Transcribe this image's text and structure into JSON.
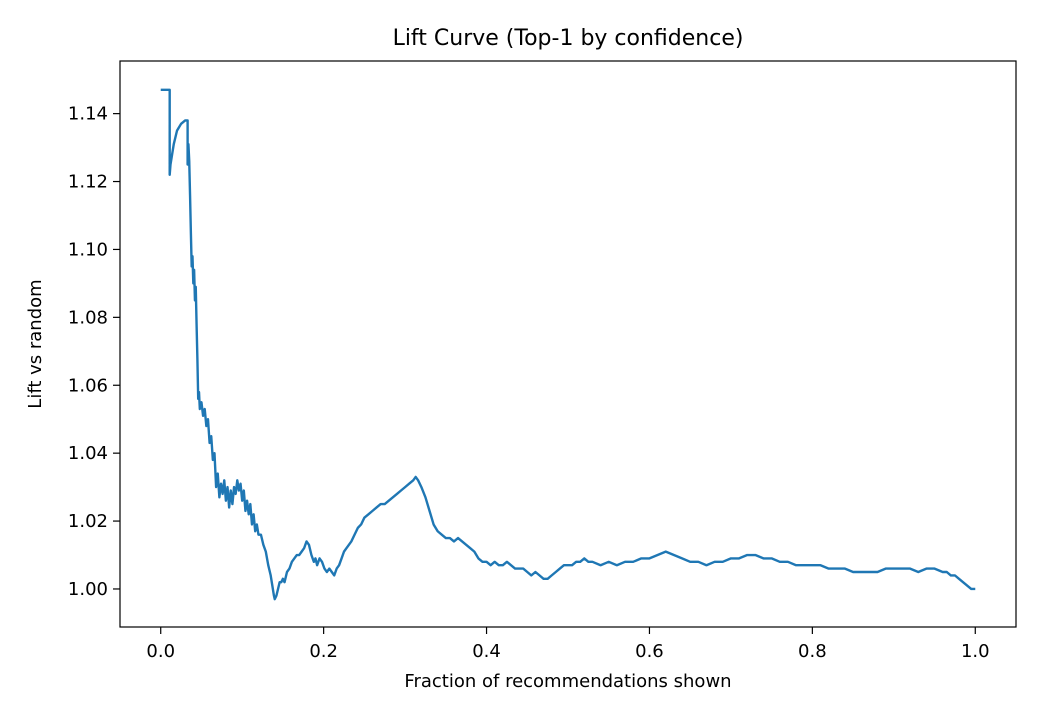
{
  "chart_data": {
    "type": "line",
    "title": "Lift Curve (Top-1 by confidence)",
    "xlabel": "Fraction of recommendations shown",
    "ylabel": "Lift vs random",
    "xlim": [
      -0.05,
      1.05
    ],
    "ylim": [
      0.9888,
      1.1555
    ],
    "x_ticks": [
      0.0,
      0.2,
      0.4,
      0.6,
      0.8,
      1.0
    ],
    "x_tick_labels": [
      "0.0",
      "0.2",
      "0.4",
      "0.6",
      "0.8",
      "1.0"
    ],
    "y_ticks": [
      1.0,
      1.02,
      1.04,
      1.06,
      1.08,
      1.1,
      1.12,
      1.14
    ],
    "y_tick_labels": [
      "1.00",
      "1.02",
      "1.04",
      "1.06",
      "1.08",
      "1.10",
      "1.12",
      "1.14"
    ],
    "grid": false,
    "legend": "none",
    "line_color": "#1f77b4",
    "series": [
      {
        "x": [
          0.0,
          0.011,
          0.011,
          0.012,
          0.016,
          0.02,
          0.025,
          0.03,
          0.033,
          0.033,
          0.034,
          0.035,
          0.036,
          0.037,
          0.038,
          0.039,
          0.04,
          0.041,
          0.042,
          0.043,
          0.044,
          0.045,
          0.046,
          0.047,
          0.048,
          0.05,
          0.052,
          0.054,
          0.056,
          0.058,
          0.06,
          0.062,
          0.064,
          0.066,
          0.068,
          0.07,
          0.072,
          0.074,
          0.076,
          0.078,
          0.08,
          0.082,
          0.084,
          0.086,
          0.088,
          0.09,
          0.092,
          0.094,
          0.096,
          0.098,
          0.1,
          0.102,
          0.104,
          0.106,
          0.108,
          0.11,
          0.112,
          0.114,
          0.116,
          0.118,
          0.12,
          0.123,
          0.126,
          0.129,
          0.132,
          0.135,
          0.137,
          0.139,
          0.14,
          0.142,
          0.144,
          0.146,
          0.148,
          0.15,
          0.152,
          0.155,
          0.158,
          0.161,
          0.164,
          0.167,
          0.17,
          0.173,
          0.176,
          0.179,
          0.182,
          0.185,
          0.188,
          0.19,
          0.192,
          0.195,
          0.198,
          0.201,
          0.204,
          0.207,
          0.21,
          0.213,
          0.216,
          0.219,
          0.222,
          0.225,
          0.228,
          0.231,
          0.234,
          0.238,
          0.242,
          0.246,
          0.25,
          0.255,
          0.26,
          0.265,
          0.27,
          0.275,
          0.28,
          0.285,
          0.29,
          0.295,
          0.3,
          0.305,
          0.31,
          0.313,
          0.316,
          0.32,
          0.325,
          0.33,
          0.335,
          0.34,
          0.345,
          0.35,
          0.355,
          0.36,
          0.365,
          0.37,
          0.375,
          0.38,
          0.385,
          0.39,
          0.395,
          0.4,
          0.405,
          0.41,
          0.415,
          0.42,
          0.425,
          0.43,
          0.435,
          0.44,
          0.445,
          0.45,
          0.455,
          0.46,
          0.465,
          0.47,
          0.475,
          0.48,
          0.485,
          0.49,
          0.495,
          0.5,
          0.505,
          0.51,
          0.515,
          0.52,
          0.525,
          0.53,
          0.54,
          0.55,
          0.56,
          0.57,
          0.58,
          0.59,
          0.6,
          0.61,
          0.62,
          0.63,
          0.64,
          0.65,
          0.66,
          0.67,
          0.68,
          0.69,
          0.7,
          0.71,
          0.72,
          0.73,
          0.74,
          0.75,
          0.76,
          0.77,
          0.78,
          0.79,
          0.8,
          0.81,
          0.82,
          0.83,
          0.84,
          0.85,
          0.86,
          0.87,
          0.88,
          0.89,
          0.9,
          0.91,
          0.92,
          0.93,
          0.94,
          0.95,
          0.96,
          0.965,
          0.97,
          0.975,
          0.98,
          0.985,
          0.99,
          0.995,
          1.0
        ],
        "y": [
          1.147,
          1.147,
          1.122,
          1.125,
          1.131,
          1.135,
          1.137,
          1.138,
          1.138,
          1.125,
          1.131,
          1.126,
          1.116,
          1.105,
          1.095,
          1.098,
          1.09,
          1.094,
          1.085,
          1.089,
          1.078,
          1.068,
          1.056,
          1.058,
          1.053,
          1.055,
          1.051,
          1.053,
          1.048,
          1.05,
          1.043,
          1.045,
          1.038,
          1.04,
          1.03,
          1.034,
          1.027,
          1.031,
          1.028,
          1.032,
          1.026,
          1.03,
          1.024,
          1.029,
          1.025,
          1.03,
          1.028,
          1.032,
          1.029,
          1.031,
          1.026,
          1.029,
          1.023,
          1.026,
          1.022,
          1.025,
          1.019,
          1.022,
          1.017,
          1.019,
          1.016,
          1.016,
          1.013,
          1.011,
          1.007,
          1.004,
          1.001,
          0.998,
          0.997,
          0.998,
          1.0,
          1.002,
          1.002,
          1.003,
          1.002,
          1.005,
          1.006,
          1.008,
          1.009,
          1.01,
          1.01,
          1.011,
          1.012,
          1.014,
          1.013,
          1.01,
          1.008,
          1.009,
          1.007,
          1.009,
          1.008,
          1.006,
          1.005,
          1.006,
          1.005,
          1.004,
          1.006,
          1.007,
          1.009,
          1.011,
          1.012,
          1.013,
          1.014,
          1.016,
          1.018,
          1.019,
          1.021,
          1.022,
          1.023,
          1.024,
          1.025,
          1.025,
          1.026,
          1.027,
          1.028,
          1.029,
          1.03,
          1.031,
          1.032,
          1.033,
          1.032,
          1.03,
          1.027,
          1.023,
          1.019,
          1.017,
          1.016,
          1.015,
          1.015,
          1.014,
          1.015,
          1.014,
          1.013,
          1.012,
          1.011,
          1.009,
          1.008,
          1.008,
          1.007,
          1.008,
          1.007,
          1.007,
          1.008,
          1.007,
          1.006,
          1.006,
          1.006,
          1.005,
          1.004,
          1.005,
          1.004,
          1.003,
          1.003,
          1.004,
          1.005,
          1.006,
          1.007,
          1.007,
          1.007,
          1.008,
          1.008,
          1.009,
          1.008,
          1.008,
          1.007,
          1.008,
          1.007,
          1.008,
          1.008,
          1.009,
          1.009,
          1.01,
          1.011,
          1.01,
          1.009,
          1.008,
          1.008,
          1.007,
          1.008,
          1.008,
          1.009,
          1.009,
          1.01,
          1.01,
          1.009,
          1.009,
          1.008,
          1.008,
          1.007,
          1.007,
          1.007,
          1.007,
          1.006,
          1.006,
          1.006,
          1.005,
          1.005,
          1.005,
          1.005,
          1.006,
          1.006,
          1.006,
          1.006,
          1.005,
          1.006,
          1.006,
          1.005,
          1.005,
          1.004,
          1.004,
          1.003,
          1.002,
          1.001,
          1.0,
          1.0
        ]
      }
    ]
  }
}
